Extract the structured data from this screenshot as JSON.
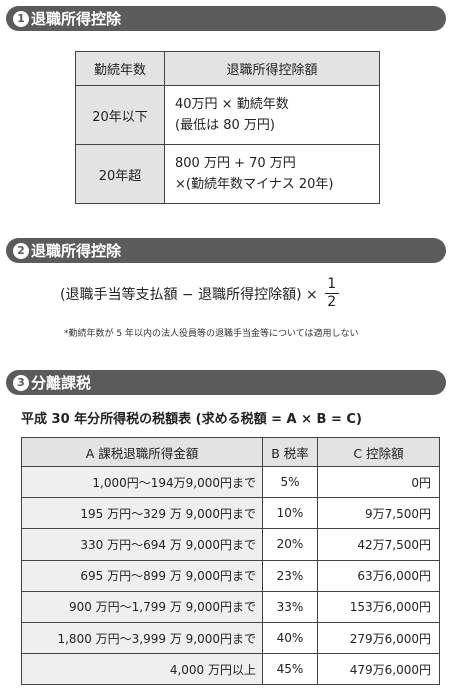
{
  "section1": {
    "num": "1",
    "title": "退職所得控除",
    "headers": [
      "勤続年数",
      "退職所得控除額"
    ],
    "rows": [
      {
        "key": "20年以下",
        "line1": "40万円 × 勤続年数",
        "line2": "(最低は 80 万円)"
      },
      {
        "key": "20年超",
        "line1": "800 万円 + 70 万円",
        "line2": "×(勤続年数マイナス 20年)"
      }
    ]
  },
  "section2": {
    "num": "2",
    "title": "退職所得控除",
    "formula": "(退職手当等支払額 − 退職所得控除額) ×",
    "fraction_numerator": "1",
    "fraction_denominator": "2",
    "note": "*勤続年数が 5 年以内の法人役員等の退職手当金等については適用しない"
  },
  "section3": {
    "num": "3",
    "title": "分離課税",
    "table_title": "平成 30 年分所得税の税額表 (求める税額 = A × B = C)",
    "headers": [
      "A 課税退職所得金額",
      "B 税率",
      "C 控除額"
    ],
    "rows": [
      {
        "a": "1,000円〜194万9,000円まで",
        "b": "5%",
        "c": "0円"
      },
      {
        "a": "195 万円〜329 万 9,000円まで",
        "b": "10%",
        "c": "9万7,500円"
      },
      {
        "a": "330 万円〜694 万 9,000円まで",
        "b": "20%",
        "c": "42万7,500円"
      },
      {
        "a": "695 万円〜899 万 9,000円まで",
        "b": "23%",
        "c": "63万6,000円"
      },
      {
        "a": "900 万円〜1,799 万 9,000円まで",
        "b": "33%",
        "c": "153万6,000円"
      },
      {
        "a": "1,800 万円〜3,999 万 9,000円まで",
        "b": "40%",
        "c": "279万6,000円"
      },
      {
        "a": "4,000 万円以上",
        "b": "45%",
        "c": "479万6,000円"
      }
    ]
  }
}
